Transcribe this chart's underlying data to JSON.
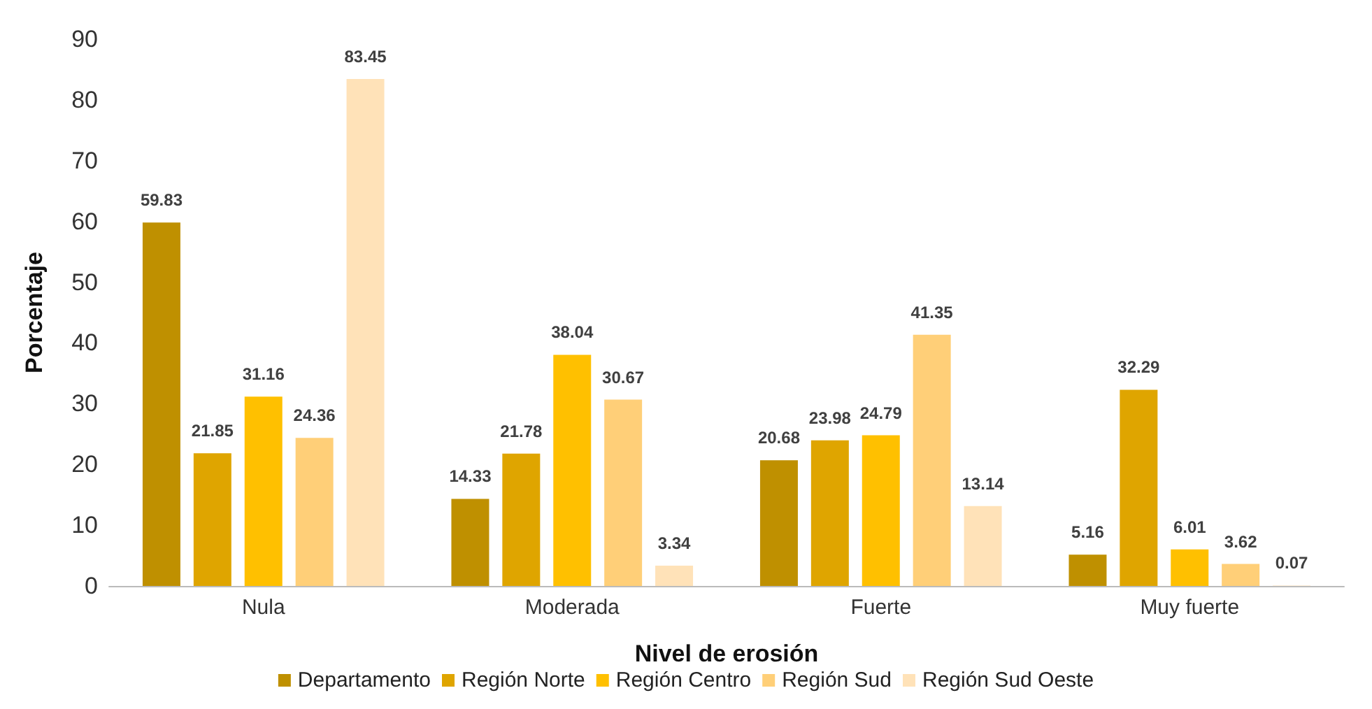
{
  "chart_data": {
    "type": "bar",
    "xlabel": "Nivel de erosión",
    "ylabel": "Porcentaje",
    "categories": [
      "Nula",
      "Moderada",
      "Fuerte",
      "Muy fuerte"
    ],
    "series": [
      {
        "name": "Departamento",
        "color": "#bf9000",
        "values": [
          59.83,
          14.33,
          20.68,
          5.16
        ]
      },
      {
        "name": "Región Norte",
        "color": "#dfa500",
        "values": [
          21.85,
          21.78,
          23.98,
          32.29
        ]
      },
      {
        "name": "Región Centro",
        "color": "#ffc000",
        "values": [
          31.16,
          38.04,
          24.79,
          6.01
        ]
      },
      {
        "name": "Región Sud",
        "color": "#ffcf78",
        "values": [
          24.36,
          30.67,
          41.35,
          3.62
        ]
      },
      {
        "name": "Región Sud Oeste",
        "color": "#ffe2b8",
        "values": [
          83.45,
          3.34,
          13.14,
          0.07
        ]
      }
    ],
    "ylim": [
      0,
      90
    ],
    "yticks": [
      0,
      10,
      20,
      30,
      40,
      50,
      60,
      70,
      80,
      90
    ],
    "grid": false,
    "legend": "bottom",
    "data_labels": true
  }
}
